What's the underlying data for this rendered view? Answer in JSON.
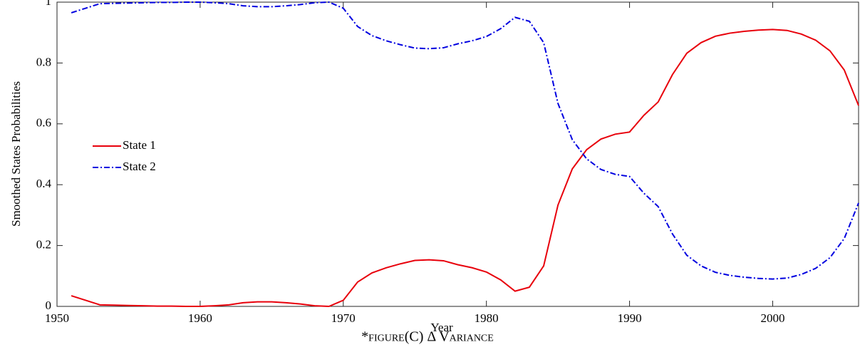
{
  "chart_data": {
    "type": "line",
    "ylabel": "Smoothed States Probabilities",
    "xlabel": "Year",
    "caption": "*figure(C) Δ Variance",
    "x": [
      1951,
      1952,
      1953,
      1954,
      1955,
      1956,
      1957,
      1958,
      1959,
      1960,
      1961,
      1962,
      1963,
      1964,
      1965,
      1966,
      1967,
      1968,
      1969,
      1970,
      1971,
      1972,
      1973,
      1974,
      1975,
      1976,
      1977,
      1978,
      1979,
      1980,
      1981,
      1982,
      1983,
      1984,
      1985,
      1986,
      1987,
      1988,
      1989,
      1990,
      1991,
      1992,
      1993,
      1994,
      1995,
      1996,
      1997,
      1998,
      1999,
      2000,
      2001,
      2002,
      2003,
      2004,
      2005,
      2006
    ],
    "series": [
      {
        "name": "State 1",
        "color": "#e8000b",
        "dash": "solid",
        "values": [
          0.035,
          0.02,
          0.005,
          0.004,
          0.003,
          0.002,
          0.001,
          0.001,
          0.0,
          0.0,
          0.002,
          0.005,
          0.012,
          0.015,
          0.015,
          0.012,
          0.008,
          0.002,
          0.0,
          0.02,
          0.08,
          0.11,
          0.127,
          0.14,
          0.151,
          0.153,
          0.15,
          0.137,
          0.127,
          0.113,
          0.087,
          0.05,
          0.063,
          0.133,
          0.333,
          0.452,
          0.515,
          0.55,
          0.566,
          0.573,
          0.628,
          0.672,
          0.762,
          0.832,
          0.867,
          0.888,
          0.898,
          0.904,
          0.908,
          0.91,
          0.907,
          0.895,
          0.875,
          0.84,
          0.777,
          0.66
        ]
      },
      {
        "name": "State 2",
        "color": "#0000e0",
        "dash": "dashdot",
        "values": [
          0.965,
          0.98,
          0.995,
          0.996,
          0.997,
          0.998,
          0.999,
          0.999,
          1.0,
          1.0,
          0.998,
          0.995,
          0.988,
          0.985,
          0.985,
          0.988,
          0.992,
          0.998,
          1.0,
          0.98,
          0.92,
          0.89,
          0.873,
          0.86,
          0.849,
          0.847,
          0.85,
          0.863,
          0.873,
          0.887,
          0.913,
          0.95,
          0.937,
          0.867,
          0.667,
          0.548,
          0.485,
          0.45,
          0.434,
          0.427,
          0.372,
          0.328,
          0.238,
          0.168,
          0.133,
          0.112,
          0.102,
          0.096,
          0.092,
          0.09,
          0.093,
          0.105,
          0.125,
          0.16,
          0.223,
          0.34
        ]
      }
    ],
    "xlim": [
      1950,
      2006
    ],
    "xticks": [
      1950,
      1960,
      1970,
      1980,
      1990,
      2000
    ],
    "ylim": [
      0,
      1
    ],
    "yticks": [
      0,
      0.2,
      0.4,
      0.6,
      0.8,
      1
    ]
  }
}
